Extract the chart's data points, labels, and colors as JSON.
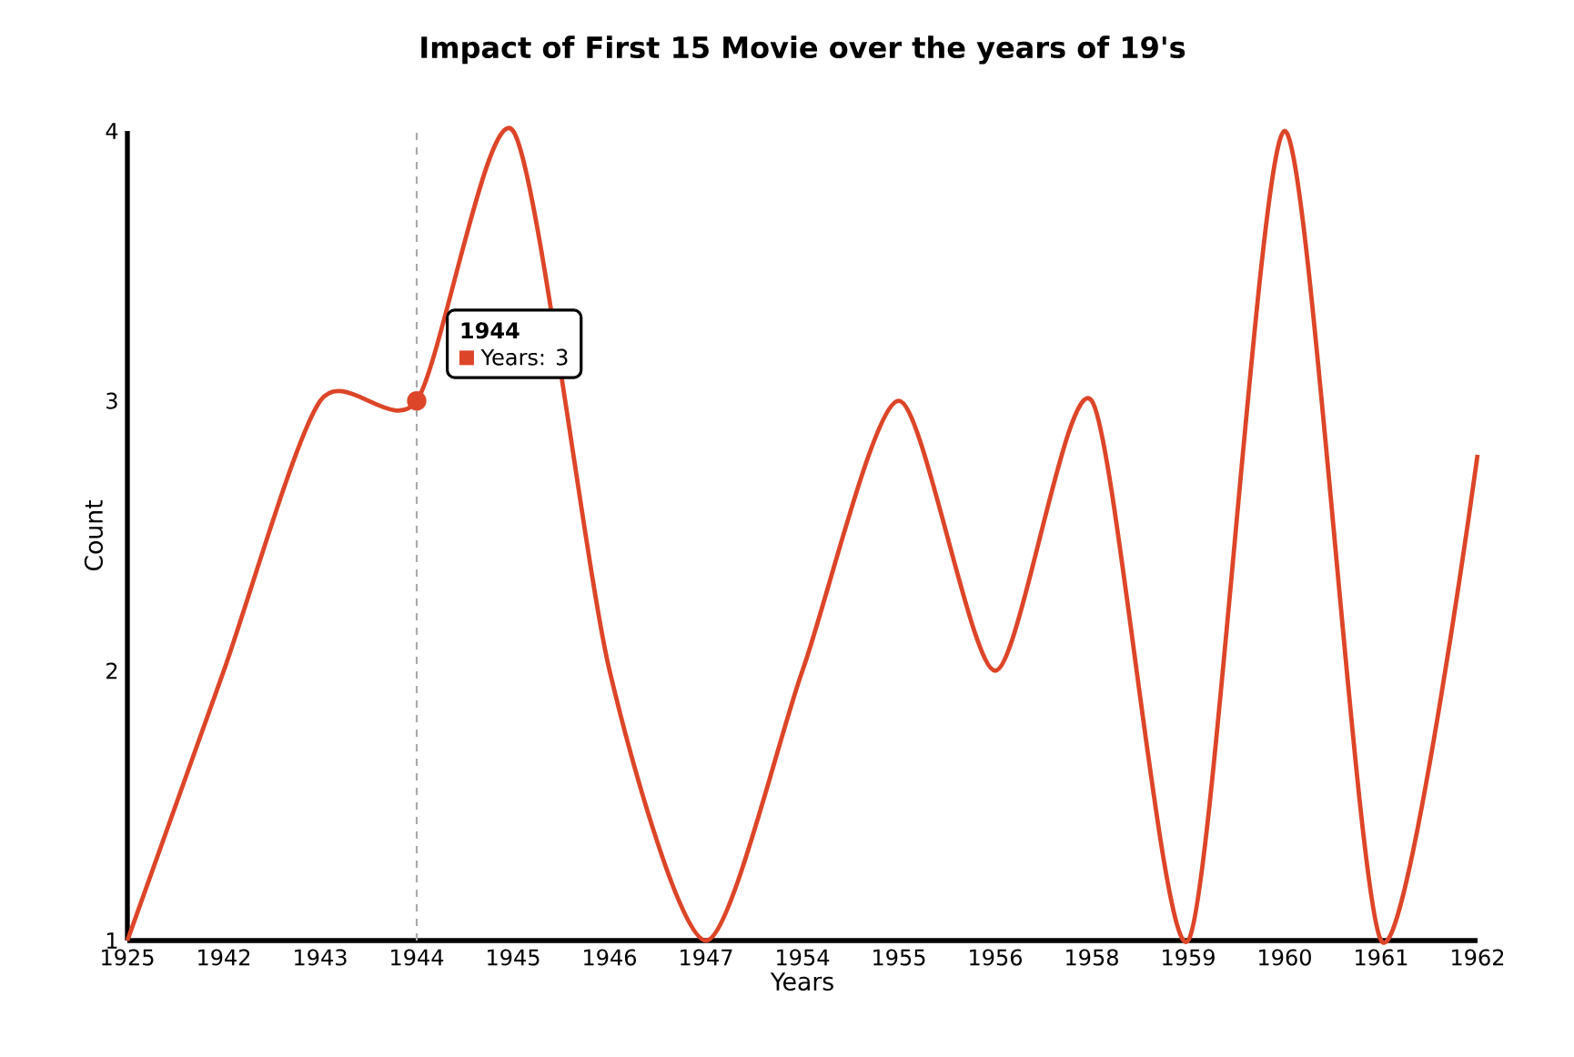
{
  "chart_data": {
    "type": "line",
    "title": "Impact of First 15 Movie over the years of 19's",
    "xlabel": "Years",
    "ylabel": "Count",
    "categories": [
      "1925",
      "1942",
      "1943",
      "1944",
      "1945",
      "1946",
      "1947",
      "1954",
      "1955",
      "1956",
      "1958",
      "1959",
      "1960",
      "1961",
      "1962"
    ],
    "series": [
      {
        "color": "#dd4528",
        "values": [
          1,
          2,
          3,
          3,
          4,
          2,
          1,
          2,
          3,
          2,
          3,
          1,
          4,
          1,
          2.8
        ]
      }
    ],
    "ylim": [
      1,
      4
    ],
    "yticks": [
      1,
      2,
      3,
      4
    ],
    "ref_lines": [
      {
        "axis": "x",
        "value": "1944",
        "color": "#aaaaaa",
        "line_style": "dashed"
      }
    ],
    "marker": "none",
    "line_style": "solid",
    "annotations": [
      "1944",
      "Years: 3"
    ]
  }
}
